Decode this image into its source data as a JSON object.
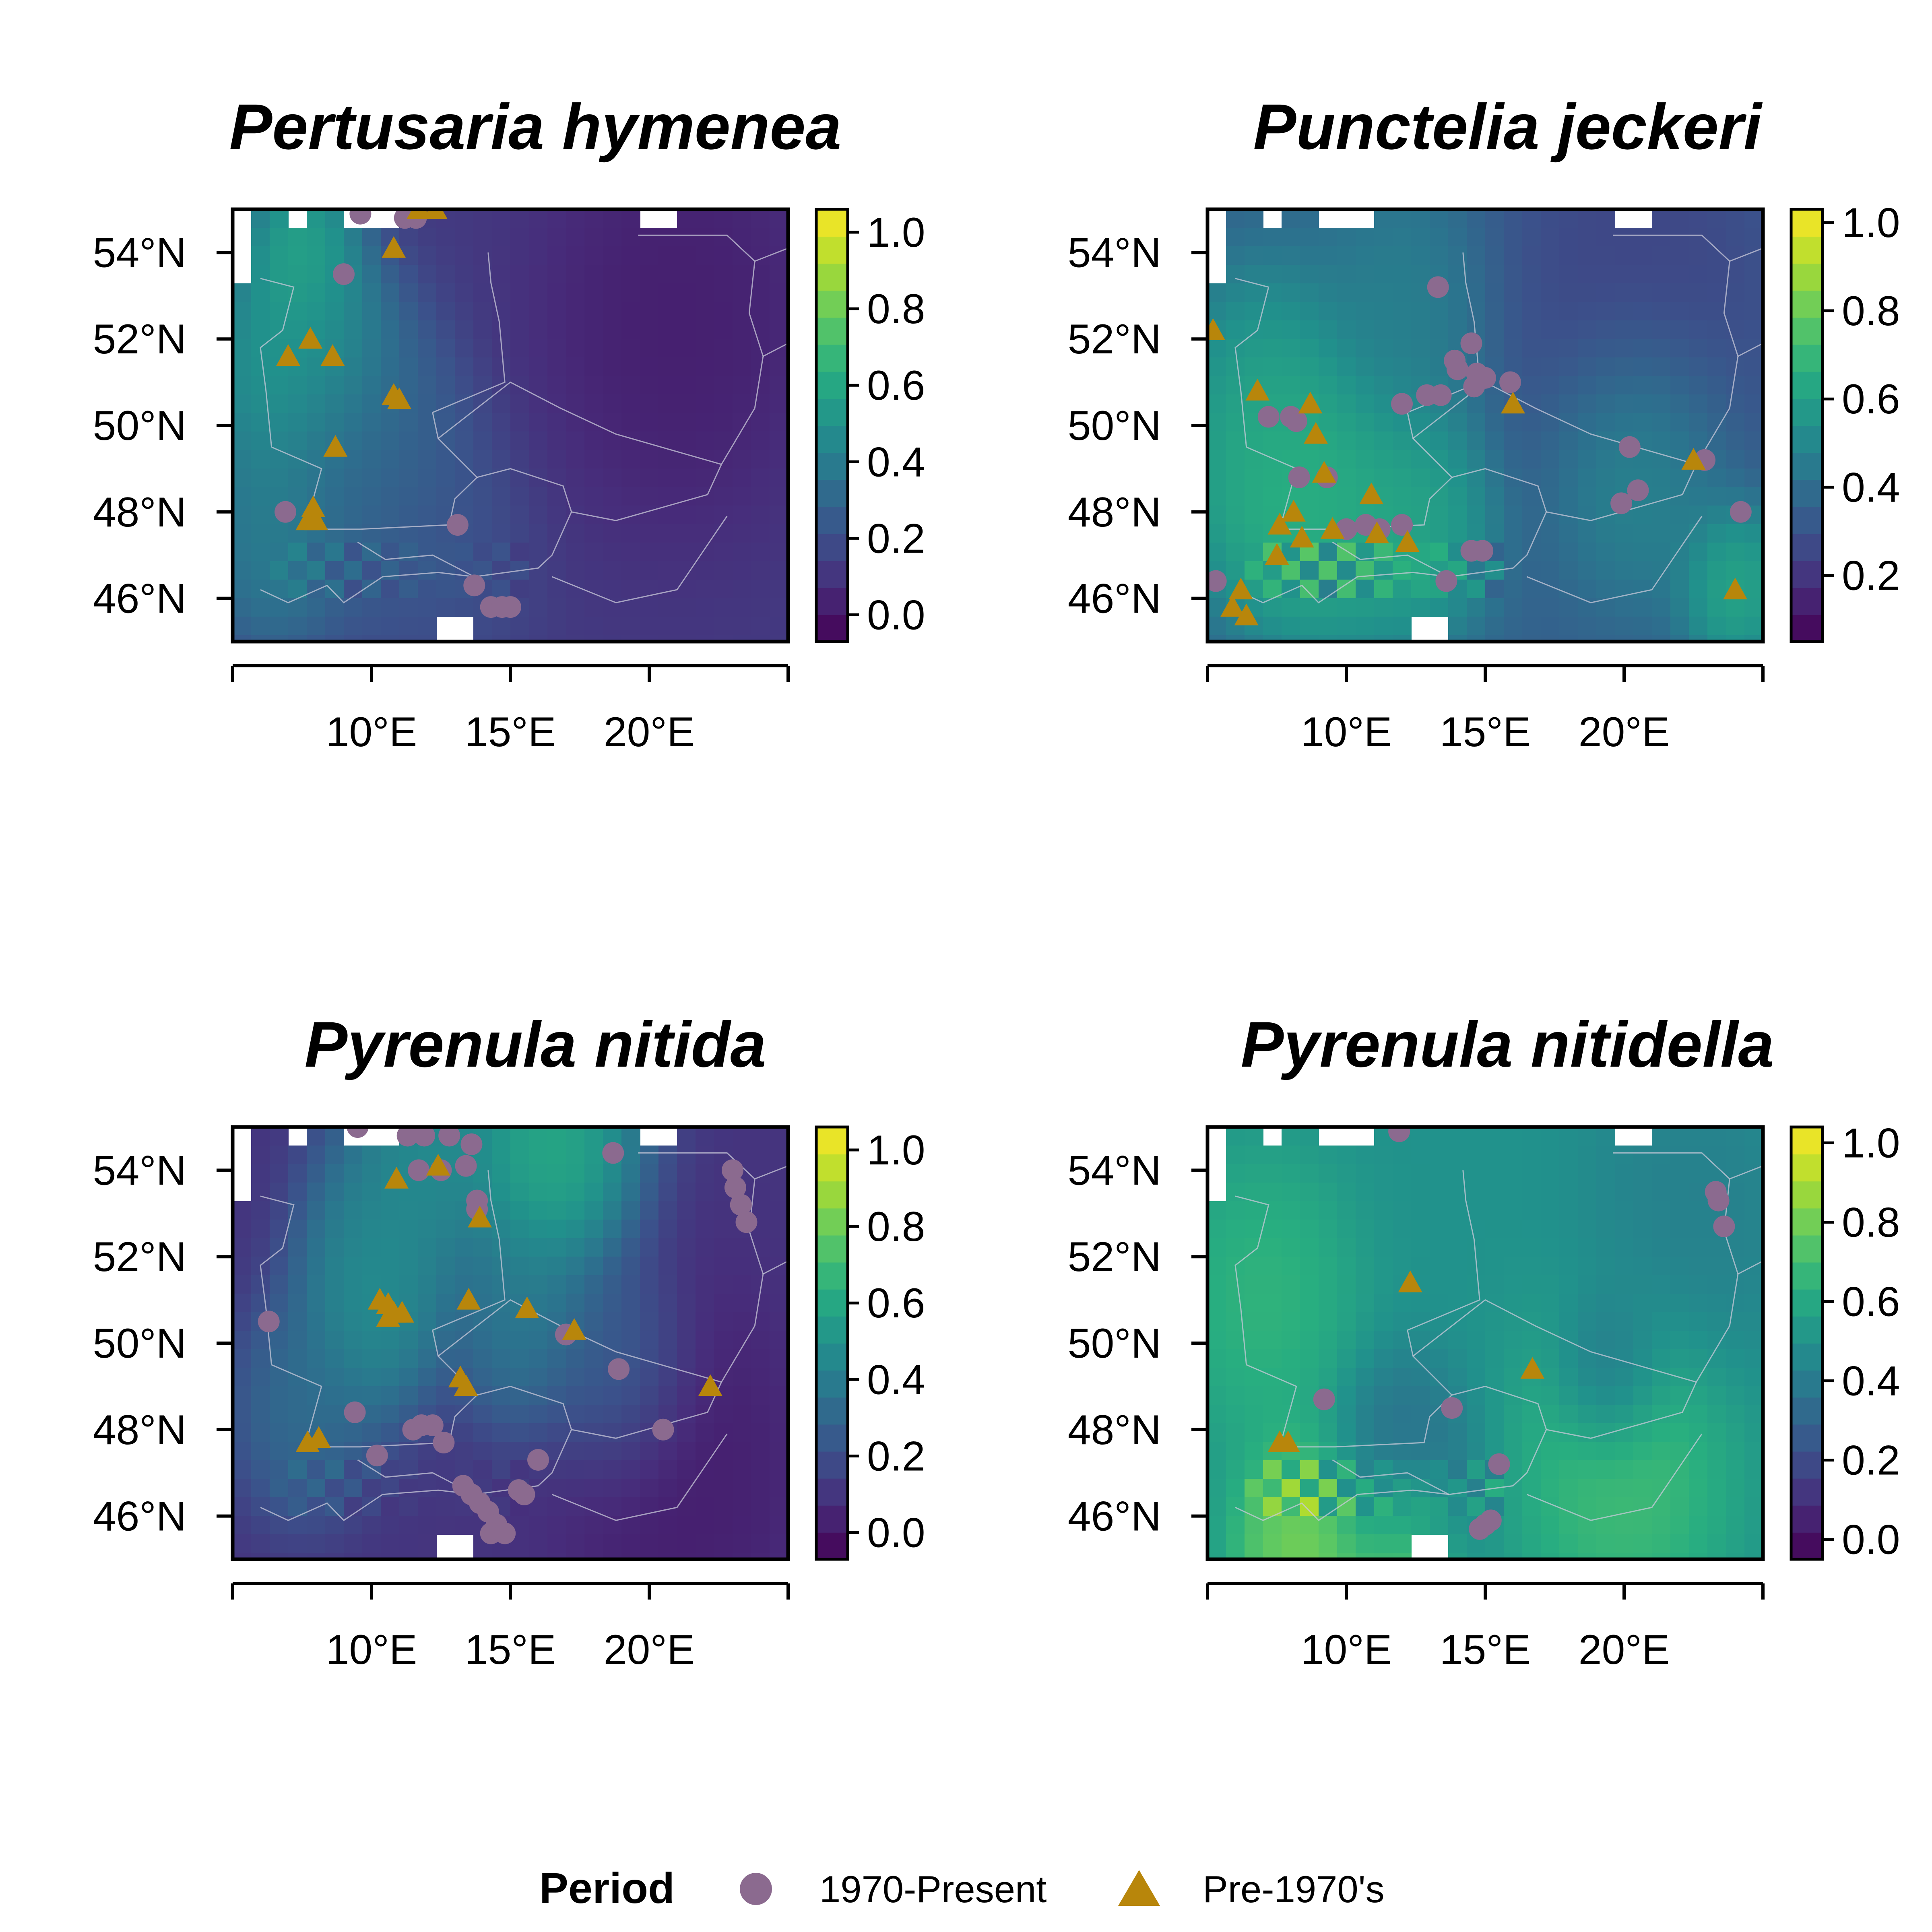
{
  "colors": {
    "present": "#8b6a8f",
    "pre1970": "#b8860b",
    "viridis": [
      "#440154",
      "#472d7b",
      "#3b528b",
      "#2c728e",
      "#21918c",
      "#28ae80",
      "#5ec962",
      "#addc30",
      "#fde725"
    ]
  },
  "axes": {
    "lat_ticks": [
      {
        "value": 54,
        "label": "54°N"
      },
      {
        "value": 52,
        "label": "52°N"
      },
      {
        "value": 50,
        "label": "50°N"
      },
      {
        "value": 48,
        "label": "48°N"
      },
      {
        "value": 46,
        "label": "46°N"
      }
    ],
    "lon_ticks": [
      {
        "value": 10,
        "label": "10°E"
      },
      {
        "value": 15,
        "label": "15°E"
      },
      {
        "value": 20,
        "label": "20°E"
      }
    ],
    "lon_range": [
      5,
      25
    ],
    "lat_range": [
      45,
      55
    ]
  },
  "legend": {
    "title": "Period",
    "entries": [
      {
        "label": "1970-Present",
        "shape": "circle",
        "color_key": "present"
      },
      {
        "label": "Pre-1970's",
        "shape": "triangle",
        "color_key": "pre1970"
      }
    ]
  },
  "maps": [
    {
      "title": "Pertusaria hymenea",
      "scale_ticks": [
        {
          "v": 0,
          "l": "0.0"
        },
        {
          "v": 0.2,
          "l": "0.2"
        },
        {
          "v": 0.4,
          "l": "0.4"
        },
        {
          "v": 0.6,
          "l": "0.6"
        },
        {
          "v": 0.8,
          "l": "0.8"
        },
        {
          "v": 1.0,
          "l": "1.0"
        }
      ],
      "scale_range": [
        -0.07,
        1.06
      ],
      "base_value": 0.12,
      "hotspots": [
        {
          "lon": 6.5,
          "lat": 51.3,
          "r": 2.2,
          "v": 0.62
        },
        {
          "lon": 8.5,
          "lat": 51.8,
          "r": 1.8,
          "v": 0.55
        },
        {
          "lon": 7.5,
          "lat": 54.0,
          "r": 1.6,
          "v": 0.7
        },
        {
          "lon": 6.5,
          "lat": 47.5,
          "r": 2.2,
          "v": 0.48
        },
        {
          "lon": 9.5,
          "lat": 50.0,
          "r": 2.5,
          "v": 0.38
        },
        {
          "lon": 10.5,
          "lat": 48.5,
          "r": 2.5,
          "v": 0.3
        },
        {
          "lon": 12.5,
          "lat": 47.0,
          "r": 2.5,
          "v": 0.22
        },
        {
          "lon": 21.0,
          "lat": 52.5,
          "r": 4.0,
          "v": 0.0
        }
      ],
      "present": [
        [
          9.0,
          53.5
        ],
        [
          11.2,
          54.8
        ],
        [
          11.6,
          54.8
        ],
        [
          9.6,
          54.9
        ],
        [
          6.9,
          48.0
        ],
        [
          13.1,
          47.7
        ],
        [
          13.7,
          46.3
        ],
        [
          14.3,
          45.8
        ],
        [
          14.7,
          45.8
        ],
        [
          15.0,
          45.8
        ]
      ],
      "pre1970": [
        [
          7.8,
          52.0
        ],
        [
          7.0,
          51.6
        ],
        [
          8.6,
          51.6
        ],
        [
          10.8,
          50.7
        ],
        [
          11.0,
          50.6
        ],
        [
          8.7,
          49.5
        ],
        [
          7.9,
          48.1
        ],
        [
          7.7,
          47.8
        ],
        [
          8.0,
          47.8
        ],
        [
          10.8,
          54.1
        ],
        [
          11.7,
          55.0
        ],
        [
          12.3,
          55.0
        ]
      ]
    },
    {
      "title": "Punctelia jeckeri",
      "scale_ticks": [
        {
          "v": 0.2,
          "l": "0.2"
        },
        {
          "v": 0.4,
          "l": "0.4"
        },
        {
          "v": 0.6,
          "l": "0.6"
        },
        {
          "v": 0.8,
          "l": "0.8"
        },
        {
          "v": 1.0,
          "l": "1.0"
        }
      ],
      "scale_range": [
        0.05,
        1.03
      ],
      "base_value": 0.35,
      "hotspots": [
        {
          "lon": 7.5,
          "lat": 48.8,
          "r": 2.5,
          "v": 0.75
        },
        {
          "lon": 9.5,
          "lat": 48.0,
          "r": 2.5,
          "v": 0.7
        },
        {
          "lon": 7.0,
          "lat": 50.5,
          "r": 2.5,
          "v": 0.62
        },
        {
          "lon": 12.5,
          "lat": 47.8,
          "r": 2.2,
          "v": 0.68
        },
        {
          "lon": 20.5,
          "lat": 49.3,
          "r": 2.5,
          "v": 0.6
        },
        {
          "lon": 24.0,
          "lat": 46.3,
          "r": 1.5,
          "v": 0.7
        },
        {
          "lon": 20.5,
          "lat": 52.8,
          "r": 4.0,
          "v": 0.22
        },
        {
          "lon": 12.0,
          "lat": 52.5,
          "r": 2.5,
          "v": 0.5
        }
      ],
      "present": [
        [
          13.3,
          53.2
        ],
        [
          14.5,
          51.9
        ],
        [
          13.9,
          51.5
        ],
        [
          14.0,
          51.3
        ],
        [
          14.7,
          51.2
        ],
        [
          15.0,
          51.1
        ],
        [
          14.6,
          50.9
        ],
        [
          15.9,
          51.0
        ],
        [
          12.0,
          50.5
        ],
        [
          12.9,
          50.7
        ],
        [
          13.4,
          50.7
        ],
        [
          7.2,
          50.2
        ],
        [
          8.0,
          50.2
        ],
        [
          8.2,
          50.1
        ],
        [
          8.3,
          48.8
        ],
        [
          9.3,
          48.8
        ],
        [
          10.0,
          47.6
        ],
        [
          10.7,
          47.7
        ],
        [
          11.2,
          47.6
        ],
        [
          12.0,
          47.7
        ],
        [
          14.5,
          47.1
        ],
        [
          14.9,
          47.1
        ],
        [
          13.6,
          46.4
        ],
        [
          5.3,
          46.4
        ],
        [
          20.2,
          49.5
        ],
        [
          22.9,
          49.2
        ],
        [
          20.5,
          48.5
        ],
        [
          19.9,
          48.2
        ],
        [
          24.2,
          48.0
        ]
      ],
      "pre1970": [
        [
          5.2,
          52.2
        ],
        [
          6.8,
          50.8
        ],
        [
          8.7,
          50.5
        ],
        [
          8.9,
          49.8
        ],
        [
          9.2,
          48.9
        ],
        [
          10.9,
          48.4
        ],
        [
          8.1,
          48.0
        ],
        [
          7.6,
          47.7
        ],
        [
          8.4,
          47.4
        ],
        [
          9.5,
          47.6
        ],
        [
          11.1,
          47.5
        ],
        [
          12.2,
          47.3
        ],
        [
          7.5,
          47.0
        ],
        [
          6.2,
          46.2
        ],
        [
          5.9,
          45.8
        ],
        [
          6.4,
          45.6
        ],
        [
          16.0,
          50.5
        ],
        [
          22.5,
          49.2
        ],
        [
          24.0,
          46.2
        ]
      ]
    },
    {
      "title": "Pyrenula nitida",
      "scale_ticks": [
        {
          "v": 0,
          "l": "0.0"
        },
        {
          "v": 0.2,
          "l": "0.2"
        },
        {
          "v": 0.4,
          "l": "0.4"
        },
        {
          "v": 0.6,
          "l": "0.6"
        },
        {
          "v": 0.8,
          "l": "0.8"
        },
        {
          "v": 1.0,
          "l": "1.0"
        }
      ],
      "scale_range": [
        -0.07,
        1.06
      ],
      "base_value": 0.1,
      "hotspots": [
        {
          "lon": 10.5,
          "lat": 52.5,
          "r": 2.2,
          "v": 0.5
        },
        {
          "lon": 10.0,
          "lat": 50.8,
          "r": 2.0,
          "v": 0.55
        },
        {
          "lon": 16.5,
          "lat": 54.5,
          "r": 2.5,
          "v": 0.75
        },
        {
          "lon": 12.0,
          "lat": 54.5,
          "r": 2.0,
          "v": 0.55
        },
        {
          "lon": 15.5,
          "lat": 50.5,
          "r": 2.0,
          "v": 0.45
        },
        {
          "lon": 7.5,
          "lat": 48.5,
          "r": 2.0,
          "v": 0.38
        },
        {
          "lon": 19.0,
          "lat": 49.3,
          "r": 2.0,
          "v": 0.35
        },
        {
          "lon": 21.0,
          "lat": 47.0,
          "r": 3.5,
          "v": 0.0
        }
      ],
      "present": [
        [
          9.5,
          55.0
        ],
        [
          11.3,
          54.8
        ],
        [
          11.9,
          54.8
        ],
        [
          12.8,
          54.8
        ],
        [
          11.7,
          54.0
        ],
        [
          12.5,
          54.0
        ],
        [
          13.4,
          54.1
        ],
        [
          13.6,
          54.6
        ],
        [
          13.8,
          53.3
        ],
        [
          13.8,
          53.1
        ],
        [
          18.7,
          54.4
        ],
        [
          23.0,
          54.0
        ],
        [
          23.1,
          53.6
        ],
        [
          23.3,
          53.2
        ],
        [
          23.5,
          52.8
        ],
        [
          6.3,
          50.5
        ],
        [
          17.0,
          50.2
        ],
        [
          18.9,
          49.4
        ],
        [
          9.4,
          48.4
        ],
        [
          12.2,
          48.1
        ],
        [
          11.5,
          48.0
        ],
        [
          11.8,
          48.1
        ],
        [
          12.6,
          47.7
        ],
        [
          10.2,
          47.4
        ],
        [
          16.0,
          47.3
        ],
        [
          20.5,
          48.0
        ],
        [
          13.3,
          46.7
        ],
        [
          13.6,
          46.5
        ],
        [
          13.9,
          46.3
        ],
        [
          14.2,
          46.1
        ],
        [
          15.3,
          46.6
        ],
        [
          15.5,
          46.5
        ],
        [
          14.5,
          45.8
        ],
        [
          14.3,
          45.6
        ],
        [
          14.8,
          45.6
        ]
      ],
      "pre1970": [
        [
          10.9,
          53.8
        ],
        [
          12.4,
          54.1
        ],
        [
          13.9,
          52.9
        ],
        [
          10.3,
          51.0
        ],
        [
          10.6,
          50.9
        ],
        [
          10.8,
          50.7
        ],
        [
          11.1,
          50.7
        ],
        [
          10.6,
          50.6
        ],
        [
          13.5,
          51.0
        ],
        [
          15.6,
          50.8
        ],
        [
          17.3,
          50.3
        ],
        [
          13.2,
          49.2
        ],
        [
          13.4,
          49.0
        ],
        [
          7.7,
          47.7
        ],
        [
          8.1,
          47.8
        ],
        [
          22.2,
          49.0
        ]
      ]
    },
    {
      "title": "Pyrenula nitidella",
      "scale_ticks": [
        {
          "v": 0,
          "l": "0.0"
        },
        {
          "v": 0.2,
          "l": "0.2"
        },
        {
          "v": 0.4,
          "l": "0.4"
        },
        {
          "v": 0.6,
          "l": "0.6"
        },
        {
          "v": 0.8,
          "l": "0.8"
        },
        {
          "v": 1.0,
          "l": "1.0"
        }
      ],
      "scale_range": [
        -0.05,
        1.04
      ],
      "base_value": 0.5,
      "hotspots": [
        {
          "lon": 7.0,
          "lat": 51.0,
          "r": 2.5,
          "v": 0.7
        },
        {
          "lon": 20.0,
          "lat": 47.0,
          "r": 3.0,
          "v": 0.75
        },
        {
          "lon": 8.5,
          "lat": 45.3,
          "r": 2.0,
          "v": 0.9
        },
        {
          "lon": 12.0,
          "lat": 45.3,
          "r": 1.5,
          "v": 0.88
        },
        {
          "lon": 22.5,
          "lat": 53.0,
          "r": 3.0,
          "v": 0.4
        },
        {
          "lon": 12.0,
          "lat": 47.0,
          "r": 2.0,
          "v": 0.3
        },
        {
          "lon": 19.5,
          "lat": 49.3,
          "r": 1.5,
          "v": 0.28
        }
      ],
      "present": [
        [
          11.9,
          54.9
        ],
        [
          23.3,
          53.5
        ],
        [
          23.4,
          53.3
        ],
        [
          23.6,
          52.7
        ],
        [
          9.2,
          48.7
        ],
        [
          13.8,
          48.5
        ],
        [
          15.5,
          47.2
        ],
        [
          14.8,
          45.7
        ],
        [
          15.2,
          45.9
        ],
        [
          15.0,
          45.8
        ]
      ],
      "pre1970": [
        [
          12.3,
          51.4
        ],
        [
          16.7,
          49.4
        ],
        [
          7.9,
          47.7
        ],
        [
          7.6,
          47.7
        ]
      ]
    }
  ]
}
